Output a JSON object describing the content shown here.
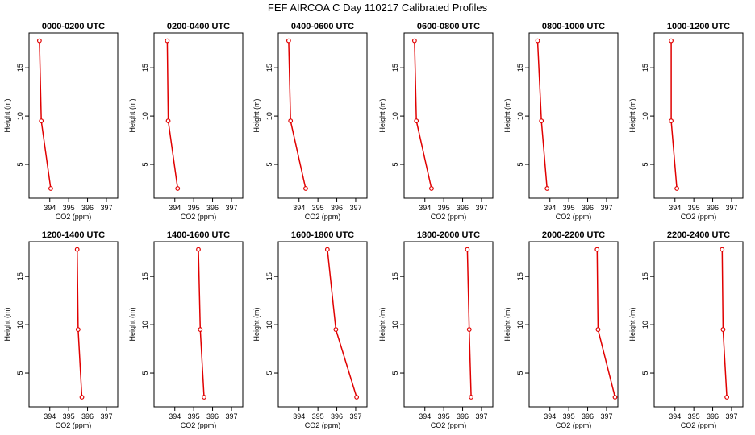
{
  "figure_title": "FEF AIRCOA C  Day 110217  Calibrated Profiles",
  "series_color": "#e00000",
  "chart_data": [
    {
      "type": "line",
      "title": "0000-0200 UTC",
      "xlabel": "CO2 (ppm)",
      "ylabel": "Height (m)",
      "xlim": [
        392.9,
        397.6
      ],
      "ylim": [
        1.5,
        18.6
      ],
      "xticks": [
        394,
        395,
        396,
        397
      ],
      "yticks": [
        5,
        10,
        15
      ],
      "x": [
        393.45,
        393.55,
        394.05
      ],
      "y": [
        17.8,
        9.5,
        2.5
      ]
    },
    {
      "type": "line",
      "title": "0200-0400 UTC",
      "xlabel": "CO2 (ppm)",
      "ylabel": "Height (m)",
      "xlim": [
        392.9,
        397.6
      ],
      "ylim": [
        1.5,
        18.6
      ],
      "xticks": [
        394,
        395,
        396,
        397
      ],
      "yticks": [
        5,
        10,
        15
      ],
      "x": [
        393.6,
        393.65,
        394.15
      ],
      "y": [
        17.8,
        9.5,
        2.5
      ]
    },
    {
      "type": "line",
      "title": "0400-0600 UTC",
      "xlabel": "CO2 (ppm)",
      "ylabel": "Height (m)",
      "xlim": [
        392.9,
        397.6
      ],
      "ylim": [
        1.5,
        18.6
      ],
      "xticks": [
        394,
        395,
        396,
        397
      ],
      "yticks": [
        5,
        10,
        15
      ],
      "x": [
        393.45,
        393.55,
        394.35
      ],
      "y": [
        17.8,
        9.5,
        2.5
      ]
    },
    {
      "type": "line",
      "title": "0600-0800 UTC",
      "xlabel": "CO2 (ppm)",
      "ylabel": "Height (m)",
      "xlim": [
        392.9,
        397.6
      ],
      "ylim": [
        1.5,
        18.6
      ],
      "xticks": [
        394,
        395,
        396,
        397
      ],
      "yticks": [
        5,
        10,
        15
      ],
      "x": [
        393.45,
        393.55,
        394.35
      ],
      "y": [
        17.8,
        9.5,
        2.5
      ]
    },
    {
      "type": "line",
      "title": "0800-1000 UTC",
      "xlabel": "CO2 (ppm)",
      "ylabel": "Height (m)",
      "xlim": [
        392.9,
        397.6
      ],
      "ylim": [
        1.5,
        18.6
      ],
      "xticks": [
        394,
        395,
        396,
        397
      ],
      "yticks": [
        5,
        10,
        15
      ],
      "x": [
        393.35,
        393.55,
        393.85
      ],
      "y": [
        17.8,
        9.5,
        2.5
      ]
    },
    {
      "type": "line",
      "title": "1000-1200 UTC",
      "xlabel": "CO2 (ppm)",
      "ylabel": "Height (m)",
      "xlim": [
        392.9,
        397.6
      ],
      "ylim": [
        1.5,
        18.6
      ],
      "xticks": [
        394,
        395,
        396,
        397
      ],
      "yticks": [
        5,
        10,
        15
      ],
      "x": [
        393.8,
        393.8,
        394.1
      ],
      "y": [
        17.8,
        9.5,
        2.5
      ]
    },
    {
      "type": "line",
      "title": "1200-1400 UTC",
      "xlabel": "CO2 (ppm)",
      "ylabel": "Height (m)",
      "xlim": [
        392.9,
        397.6
      ],
      "ylim": [
        1.5,
        18.6
      ],
      "xticks": [
        394,
        395,
        396,
        397
      ],
      "yticks": [
        5,
        10,
        15
      ],
      "x": [
        395.45,
        395.5,
        395.7
      ],
      "y": [
        17.8,
        9.5,
        2.5
      ]
    },
    {
      "type": "line",
      "title": "1400-1600 UTC",
      "xlabel": "CO2 (ppm)",
      "ylabel": "Height (m)",
      "xlim": [
        392.9,
        397.6
      ],
      "ylim": [
        1.5,
        18.6
      ],
      "xticks": [
        394,
        395,
        396,
        397
      ],
      "yticks": [
        5,
        10,
        15
      ],
      "x": [
        395.25,
        395.35,
        395.55
      ],
      "y": [
        17.8,
        9.5,
        2.5
      ]
    },
    {
      "type": "line",
      "title": "1600-1800 UTC",
      "xlabel": "CO2 (ppm)",
      "ylabel": "Height (m)",
      "xlim": [
        392.9,
        397.6
      ],
      "ylim": [
        1.5,
        18.6
      ],
      "xticks": [
        394,
        395,
        396,
        397
      ],
      "yticks": [
        5,
        10,
        15
      ],
      "x": [
        395.5,
        395.95,
        397.05
      ],
      "y": [
        17.8,
        9.5,
        2.5
      ]
    },
    {
      "type": "line",
      "title": "1800-2000 UTC",
      "xlabel": "CO2 (ppm)",
      "ylabel": "Height (m)",
      "xlim": [
        392.9,
        397.6
      ],
      "ylim": [
        1.5,
        18.6
      ],
      "xticks": [
        394,
        395,
        396,
        397
      ],
      "yticks": [
        5,
        10,
        15
      ],
      "x": [
        396.25,
        396.35,
        396.45
      ],
      "y": [
        17.8,
        9.5,
        2.5
      ]
    },
    {
      "type": "line",
      "title": "2000-2200 UTC",
      "xlabel": "CO2 (ppm)",
      "ylabel": "Height (m)",
      "xlim": [
        392.9,
        397.6
      ],
      "ylim": [
        1.5,
        18.6
      ],
      "xticks": [
        394,
        395,
        396,
        397
      ],
      "yticks": [
        5,
        10,
        15
      ],
      "x": [
        396.5,
        396.55,
        397.45
      ],
      "y": [
        17.8,
        9.5,
        2.5
      ]
    },
    {
      "type": "line",
      "title": "2200-2400 UTC",
      "xlabel": "CO2 (ppm)",
      "ylabel": "Height (m)",
      "xlim": [
        392.9,
        397.6
      ],
      "ylim": [
        1.5,
        18.6
      ],
      "xticks": [
        394,
        395,
        396,
        397
      ],
      "yticks": [
        5,
        10,
        15
      ],
      "x": [
        396.5,
        396.55,
        396.75
      ],
      "y": [
        17.8,
        9.5,
        2.5
      ]
    }
  ]
}
